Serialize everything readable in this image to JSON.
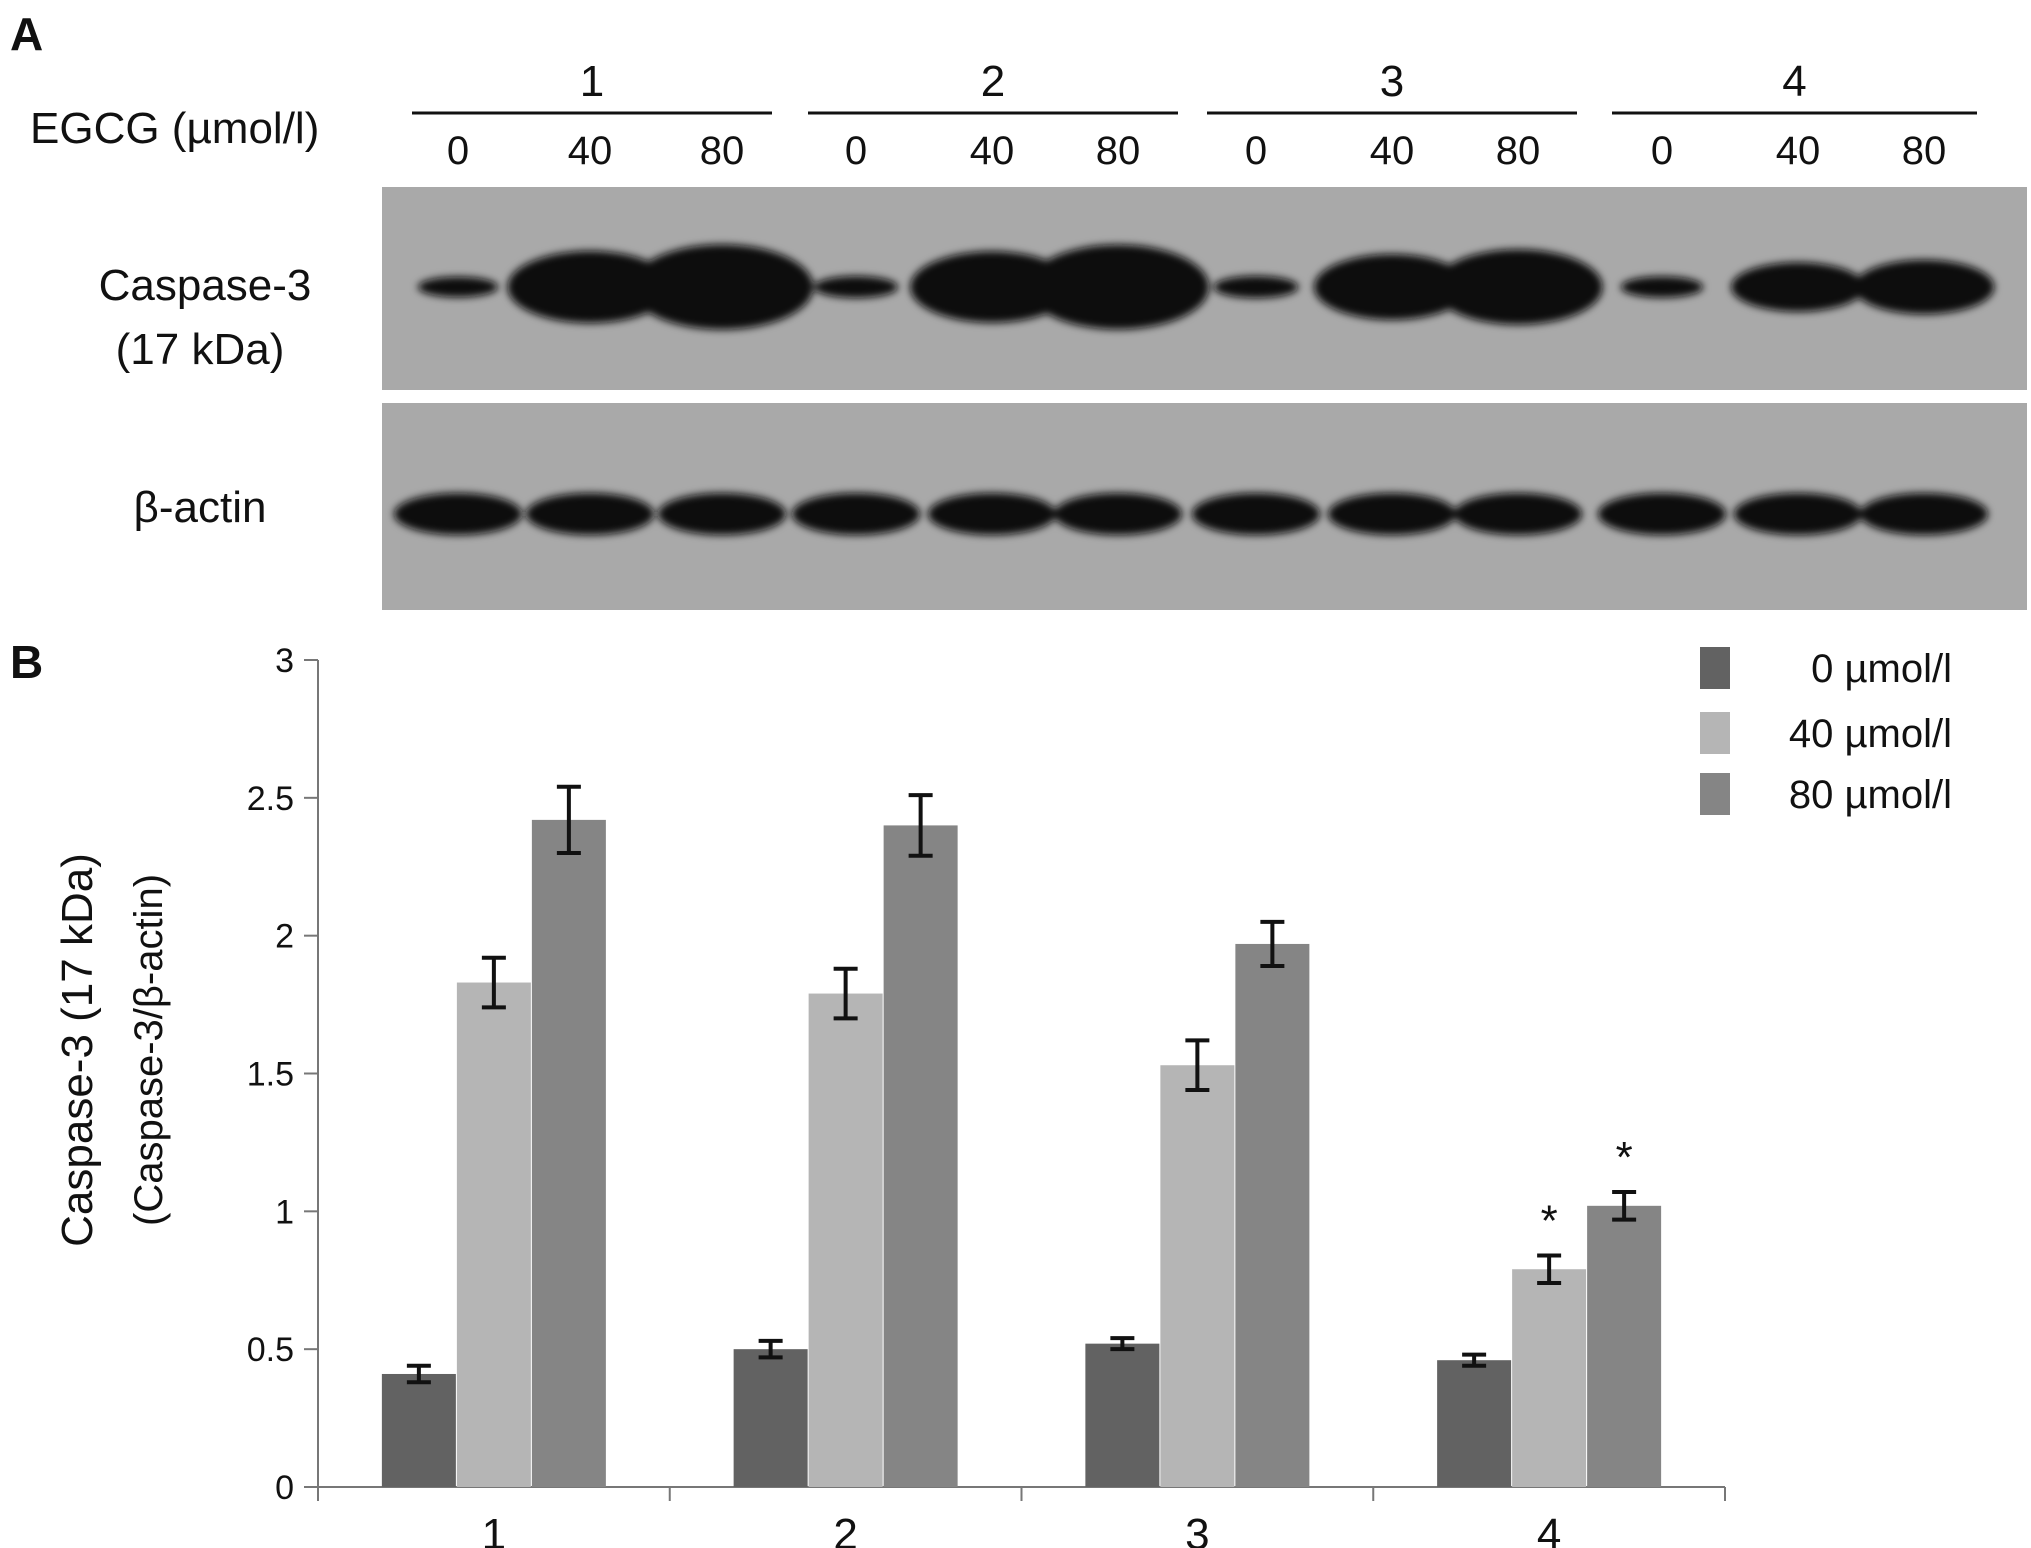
{
  "panel_a": {
    "letter": "A",
    "treatment_label": "EGCG (µmol/l)",
    "groups": [
      "1",
      "2",
      "3",
      "4"
    ],
    "doses": [
      "0",
      "40",
      "80"
    ],
    "blots": [
      {
        "label_line1": "Caspase-3",
        "label_line2": "(17 kDa)"
      },
      {
        "label_line1": "β-actin",
        "label_line2": ""
      }
    ]
  },
  "panel_b": {
    "letter": "B"
  },
  "chart_data": {
    "type": "bar",
    "title": "",
    "xlabel": "",
    "ylabel": "Caspase-3 (17 kDa)",
    "ylabel2": "(Caspase-3/β-actin)",
    "categories": [
      "1",
      "2",
      "3",
      "4"
    ],
    "ylim": [
      0,
      3
    ],
    "yticks": [
      "0",
      "0.5",
      "1",
      "1.5",
      "2",
      "2.5",
      "3"
    ],
    "legend_position": "top-right",
    "series": [
      {
        "name": "0 µmol/l",
        "color": "#626262",
        "values": [
          0.41,
          0.5,
          0.52,
          0.46
        ],
        "errors": [
          0.03,
          0.03,
          0.02,
          0.02
        ],
        "significance": [
          "",
          "",
          "",
          ""
        ]
      },
      {
        "name": "40 µmol/l",
        "color": "#b5b5b5",
        "values": [
          1.83,
          1.79,
          1.53,
          0.79
        ],
        "errors": [
          0.09,
          0.09,
          0.09,
          0.05
        ],
        "significance": [
          "",
          "",
          "",
          "*"
        ]
      },
      {
        "name": "80 µmol/l",
        "color": "#858585",
        "values": [
          2.42,
          2.4,
          1.97,
          1.02
        ],
        "errors": [
          0.12,
          0.11,
          0.08,
          0.05
        ],
        "significance": [
          "",
          "",
          "",
          "*"
        ]
      }
    ]
  }
}
